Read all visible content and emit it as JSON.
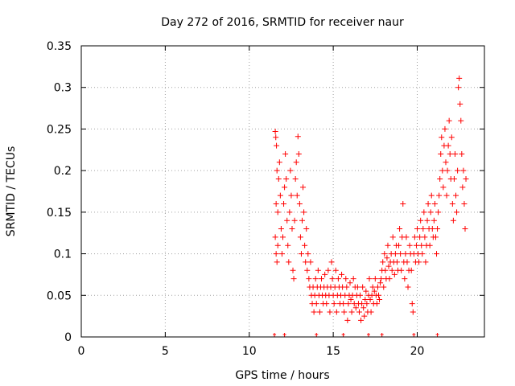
{
  "chart_data": {
    "type": "scatter",
    "title": "Day 272 of 2016, SRMTID for receiver naur",
    "xlabel": "GPS time / hours",
    "ylabel": "SRMTID / TECUs",
    "xlim": [
      0,
      24
    ],
    "ylim": [
      0,
      0.35
    ],
    "xticks": [
      0,
      5,
      10,
      15,
      20
    ],
    "xtick_labels": [
      "0",
      "5",
      "10",
      "15",
      "20"
    ],
    "yticks": [
      0,
      0.05,
      0.1,
      0.15,
      0.2,
      0.25,
      0.3,
      0.35
    ],
    "ytick_labels": [
      "0",
      "0.05",
      "0.1",
      "0.15",
      "0.2",
      "0.25",
      "0.3",
      "0.35"
    ],
    "grid": true,
    "marker": "+",
    "color": "#ff0000",
    "series": [
      {
        "name": "SRMTID",
        "points": [
          [
            11.55,
            0.247
          ],
          [
            11.58,
            0.24
          ],
          [
            11.62,
            0.23
          ],
          [
            11.65,
            0.2
          ],
          [
            11.6,
            0.16
          ],
          [
            11.7,
            0.15
          ],
          [
            11.55,
            0.12
          ],
          [
            11.6,
            0.1
          ],
          [
            11.65,
            0.09
          ],
          [
            11.7,
            0.11
          ],
          [
            11.75,
            0.19
          ],
          [
            11.8,
            0.21
          ],
          [
            11.85,
            0.17
          ],
          [
            11.9,
            0.13
          ],
          [
            11.95,
            0.1
          ],
          [
            12.0,
            0.12
          ],
          [
            12.05,
            0.16
          ],
          [
            12.1,
            0.18
          ],
          [
            12.15,
            0.22
          ],
          [
            12.2,
            0.19
          ],
          [
            12.25,
            0.14
          ],
          [
            12.3,
            0.11
          ],
          [
            12.35,
            0.09
          ],
          [
            12.4,
            0.15
          ],
          [
            12.45,
            0.2
          ],
          [
            12.5,
            0.17
          ],
          [
            12.55,
            0.13
          ],
          [
            12.6,
            0.08
          ],
          [
            12.65,
            0.07
          ],
          [
            12.7,
            0.14
          ],
          [
            12.75,
            0.19
          ],
          [
            12.8,
            0.21
          ],
          [
            12.85,
            0.17
          ],
          [
            12.9,
            0.241
          ],
          [
            12.95,
            0.22
          ],
          [
            13.0,
            0.16
          ],
          [
            13.05,
            0.12
          ],
          [
            13.1,
            0.1
          ],
          [
            13.15,
            0.14
          ],
          [
            13.2,
            0.18
          ],
          [
            13.25,
            0.15
          ],
          [
            13.3,
            0.11
          ],
          [
            13.35,
            0.09
          ],
          [
            13.4,
            0.13
          ],
          [
            13.45,
            0.08
          ],
          [
            13.5,
            0.1
          ],
          [
            13.55,
            0.07
          ],
          [
            13.6,
            0.06
          ],
          [
            13.65,
            0.09
          ],
          [
            13.7,
            0.05
          ],
          [
            13.75,
            0.04
          ],
          [
            13.8,
            0.06
          ],
          [
            13.85,
            0.03
          ],
          [
            13.9,
            0.05
          ],
          [
            13.95,
            0.07
          ],
          [
            14.0,
            0.04
          ],
          [
            14.05,
            0.06
          ],
          [
            14.1,
            0.08
          ],
          [
            14.15,
            0.05
          ],
          [
            14.2,
            0.03
          ],
          [
            14.25,
            0.06
          ],
          [
            14.3,
            0.07
          ],
          [
            14.35,
            0.05
          ],
          [
            14.4,
            0.04
          ],
          [
            14.45,
            0.06
          ],
          [
            14.5,
            0.075
          ],
          [
            14.55,
            0.05
          ],
          [
            14.6,
            0.04
          ],
          [
            14.65,
            0.06
          ],
          [
            14.7,
            0.08
          ],
          [
            14.75,
            0.05
          ],
          [
            14.8,
            0.03
          ],
          [
            14.85,
            0.06
          ],
          [
            14.9,
            0.09
          ],
          [
            14.95,
            0.07
          ],
          [
            15.0,
            0.05
          ],
          [
            15.05,
            0.04
          ],
          [
            15.1,
            0.06
          ],
          [
            15.15,
            0.08
          ],
          [
            15.2,
            0.03
          ],
          [
            15.25,
            0.05
          ],
          [
            15.3,
            0.07
          ],
          [
            15.35,
            0.06
          ],
          [
            15.4,
            0.04
          ],
          [
            15.45,
            0.05
          ],
          [
            15.5,
            0.075
          ],
          [
            15.55,
            0.06
          ],
          [
            15.6,
            0.04
          ],
          [
            15.65,
            0.03
          ],
          [
            15.7,
            0.05
          ],
          [
            15.75,
            0.07
          ],
          [
            15.8,
            0.06
          ],
          [
            15.85,
            0.02
          ],
          [
            15.9,
            0.04
          ],
          [
            15.95,
            0.05
          ],
          [
            16.0,
            0.065
          ],
          [
            16.05,
            0.045
          ],
          [
            16.1,
            0.03
          ],
          [
            16.15,
            0.05
          ],
          [
            16.2,
            0.07
          ],
          [
            16.25,
            0.04
          ],
          [
            16.3,
            0.06
          ],
          [
            16.35,
            0.035
          ],
          [
            16.4,
            0.05
          ],
          [
            16.45,
            0.06
          ],
          [
            16.5,
            0.04
          ],
          [
            16.55,
            0.03
          ],
          [
            16.6,
            0.05
          ],
          [
            16.65,
            0.02
          ],
          [
            16.7,
            0.04
          ],
          [
            16.75,
            0.06
          ],
          [
            16.8,
            0.035
          ],
          [
            16.85,
            0.025
          ],
          [
            16.9,
            0.045
          ],
          [
            16.95,
            0.055
          ],
          [
            17.0,
            0.04
          ],
          [
            17.05,
            0.03
          ],
          [
            17.1,
            0.05
          ],
          [
            17.15,
            0.07
          ],
          [
            17.2,
            0.045
          ],
          [
            17.25,
            0.03
          ],
          [
            17.3,
            0.05
          ],
          [
            17.35,
            0.06
          ],
          [
            17.4,
            0.04
          ],
          [
            17.45,
            0.055
          ],
          [
            17.5,
            0.07
          ],
          [
            17.55,
            0.05
          ],
          [
            17.6,
            0.04
          ],
          [
            17.65,
            0.06
          ],
          [
            17.7,
            0.05
          ],
          [
            17.75,
            0.045
          ],
          [
            17.8,
            0.065
          ],
          [
            17.85,
            0.07
          ],
          [
            17.9,
            0.08
          ],
          [
            17.95,
            0.09
          ],
          [
            18.0,
            0.06
          ],
          [
            18.05,
            0.1
          ],
          [
            18.1,
            0.08
          ],
          [
            18.15,
            0.07
          ],
          [
            18.2,
            0.095
          ],
          [
            18.25,
            0.11
          ],
          [
            18.3,
            0.085
          ],
          [
            18.35,
            0.07
          ],
          [
            18.4,
            0.09
          ],
          [
            18.45,
            0.1
          ],
          [
            18.5,
            0.08
          ],
          [
            18.55,
            0.12
          ],
          [
            18.6,
            0.09
          ],
          [
            18.65,
            0.075
          ],
          [
            18.7,
            0.1
          ],
          [
            18.75,
            0.11
          ],
          [
            18.8,
            0.09
          ],
          [
            18.85,
            0.08
          ],
          [
            18.9,
            0.11
          ],
          [
            18.95,
            0.13
          ],
          [
            19.0,
            0.1
          ],
          [
            19.05,
            0.08
          ],
          [
            19.1,
            0.12
          ],
          [
            19.15,
            0.16
          ],
          [
            19.2,
            0.09
          ],
          [
            19.25,
            0.07
          ],
          [
            19.3,
            0.1
          ],
          [
            19.35,
            0.12
          ],
          [
            19.4,
            0.09
          ],
          [
            19.45,
            0.06
          ],
          [
            19.5,
            0.08
          ],
          [
            19.55,
            0.11
          ],
          [
            19.6,
            0.1
          ],
          [
            19.65,
            0.08
          ],
          [
            19.7,
            0.04
          ],
          [
            19.75,
            0.03
          ],
          [
            19.8,
            0.1
          ],
          [
            19.85,
            0.12
          ],
          [
            19.9,
            0.09
          ],
          [
            19.95,
            0.11
          ],
          [
            20.0,
            0.13
          ],
          [
            20.05,
            0.1
          ],
          [
            20.1,
            0.09
          ],
          [
            20.15,
            0.12
          ],
          [
            20.2,
            0.14
          ],
          [
            20.25,
            0.11
          ],
          [
            20.3,
            0.1
          ],
          [
            20.35,
            0.13
          ],
          [
            20.4,
            0.15
          ],
          [
            20.45,
            0.12
          ],
          [
            20.5,
            0.09
          ],
          [
            20.55,
            0.11
          ],
          [
            20.6,
            0.14
          ],
          [
            20.65,
            0.16
          ],
          [
            20.7,
            0.13
          ],
          [
            20.75,
            0.11
          ],
          [
            20.8,
            0.15
          ],
          [
            20.85,
            0.17
          ],
          [
            20.9,
            0.13
          ],
          [
            20.95,
            0.12
          ],
          [
            21.0,
            0.14
          ],
          [
            21.05,
            0.16
          ],
          [
            21.1,
            0.12
          ],
          [
            21.15,
            0.1
          ],
          [
            21.2,
            0.13
          ],
          [
            21.25,
            0.15
          ],
          [
            21.3,
            0.17
          ],
          [
            21.35,
            0.19
          ],
          [
            21.4,
            0.22
          ],
          [
            21.45,
            0.24
          ],
          [
            21.5,
            0.2
          ],
          [
            21.55,
            0.18
          ],
          [
            21.6,
            0.23
          ],
          [
            21.65,
            0.25
          ],
          [
            21.7,
            0.21
          ],
          [
            21.75,
            0.17
          ],
          [
            21.8,
            0.2
          ],
          [
            21.85,
            0.23
          ],
          [
            21.9,
            0.26
          ],
          [
            21.95,
            0.22
          ],
          [
            22.0,
            0.19
          ],
          [
            22.05,
            0.24
          ],
          [
            22.1,
            0.16
          ],
          [
            22.15,
            0.14
          ],
          [
            22.2,
            0.19
          ],
          [
            22.25,
            0.22
          ],
          [
            22.3,
            0.17
          ],
          [
            22.35,
            0.15
          ],
          [
            22.4,
            0.2
          ],
          [
            22.45,
            0.3
          ],
          [
            22.5,
            0.311
          ],
          [
            22.55,
            0.28
          ],
          [
            22.6,
            0.26
          ],
          [
            22.65,
            0.22
          ],
          [
            22.7,
            0.18
          ],
          [
            22.75,
            0.2
          ],
          [
            22.8,
            0.16
          ],
          [
            22.85,
            0.13
          ],
          [
            22.9,
            0.19
          ]
        ]
      }
    ],
    "axis_markers_x": [
      11.5,
      12.1,
      14.0,
      15.6,
      17.1,
      17.9,
      19.8,
      21.2
    ]
  }
}
